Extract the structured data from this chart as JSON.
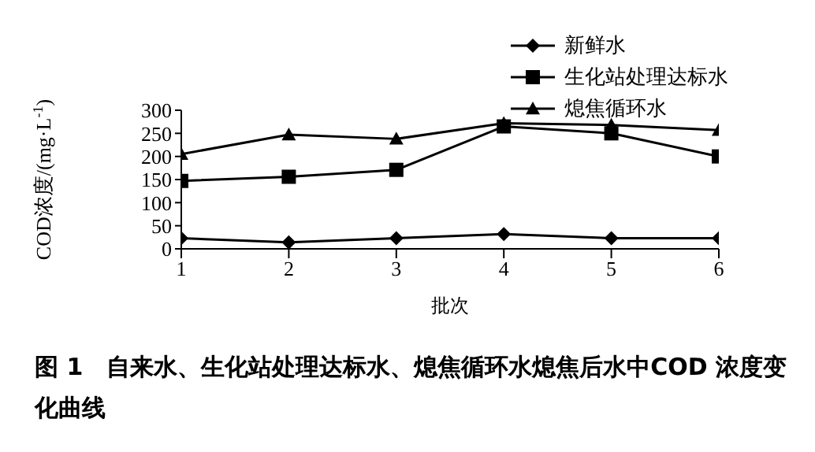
{
  "chart_data": {
    "type": "line",
    "title": "图 1　自来水、生化站处理达标水、熄焦循环水熄焦后水中COD 浓度变化曲线",
    "xlabel": "批次",
    "ylabel": "COD浓度/(mg·L$^{-1}$)",
    "x": [
      1,
      2,
      3,
      4,
      5,
      6
    ],
    "xlim": [
      1,
      6
    ],
    "xticks": [
      1,
      2,
      3,
      4,
      5,
      6
    ],
    "ylim": [
      0,
      300
    ],
    "yticks": [
      0,
      50,
      100,
      150,
      200,
      250,
      300
    ],
    "grid": false,
    "legend": "top right",
    "line_style": "solid",
    "series": [
      {
        "name": "新鲜水",
        "color": "#000000",
        "marker": "diamond",
        "values": [
          23,
          14,
          23,
          32,
          23,
          23
        ]
      },
      {
        "name": "生化站处理达标水",
        "color": "#000000",
        "marker": "square",
        "values": [
          147,
          156,
          171,
          265,
          250,
          200
        ]
      },
      {
        "name": "熄焦循环水",
        "color": "#000000",
        "marker": "triangle",
        "values": [
          205,
          247,
          238,
          272,
          268,
          257
        ]
      }
    ]
  }
}
